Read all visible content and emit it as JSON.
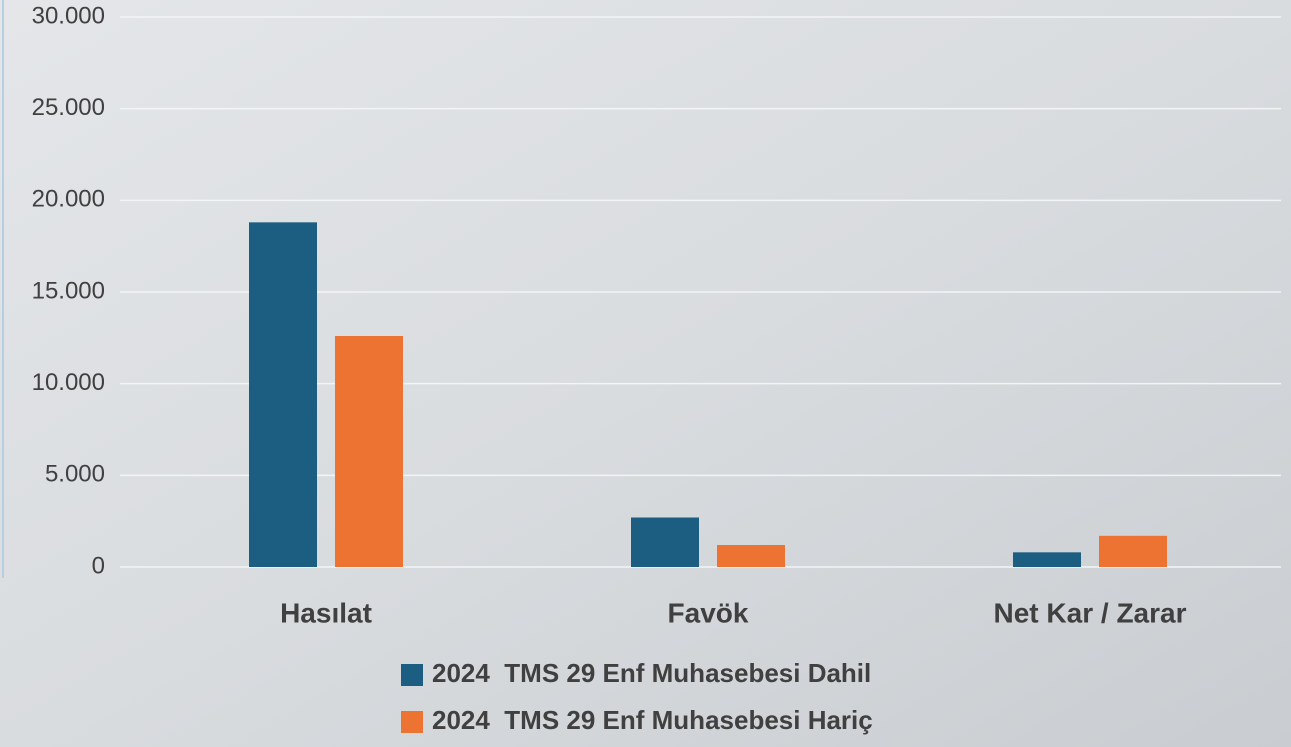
{
  "chart_data": {
    "type": "bar",
    "categories": [
      "Hasılat",
      "Favök",
      "Net Kar / Zarar"
    ],
    "series": [
      {
        "name": "2024  TMS 29 Enf Muhasebesi Dahil",
        "color": "#1b5e82",
        "values": [
          18800,
          2700,
          800
        ]
      },
      {
        "name": "2024  TMS 29 Enf Muhasebesi Hariç",
        "color": "#ed7332",
        "values": [
          12600,
          1200,
          1700
        ]
      }
    ],
    "ylim": [
      0,
      30000
    ],
    "yticks": [
      0,
      {
        "value": 5000,
        "label": "5.000"
      },
      {
        "value": 10000,
        "label": "10.000"
      },
      {
        "value": 15000,
        "label": "15.000"
      },
      {
        "value": 20000,
        "label": "20.000"
      },
      {
        "value": 25000,
        "label": "25.000"
      },
      {
        "value": 30000,
        "label": "30.000"
      }
    ],
    "grid": true,
    "legend": "bottom"
  }
}
